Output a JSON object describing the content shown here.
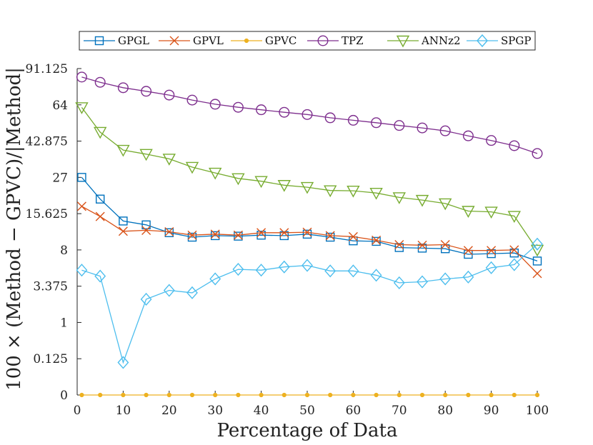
{
  "chart_data": {
    "type": "line",
    "title": "",
    "xlabel": "Percentage of Data",
    "ylabel": "100 × (Method − GPVC)/|Method|",
    "xlim": [
      0,
      100
    ],
    "ylim": [
      0,
      91.125
    ],
    "y_scale": "cube-root",
    "xticks": [
      0,
      10,
      20,
      30,
      40,
      50,
      60,
      70,
      80,
      90,
      100
    ],
    "xtick_labels": [
      "0",
      "10",
      "20",
      "30",
      "40",
      "50",
      "60",
      "70",
      "80",
      "90",
      "100"
    ],
    "yticks": [
      0,
      0.125,
      1,
      3.375,
      8,
      15.625,
      27,
      42.875,
      64,
      91.125
    ],
    "ytick_labels": [
      "0",
      "0.125",
      "1",
      "3.375",
      "8",
      "15.625",
      "27",
      "42.875",
      "64",
      "91.125"
    ],
    "grid": false,
    "legend_position": "top",
    "x": [
      1,
      5,
      10,
      15,
      20,
      25,
      30,
      35,
      40,
      45,
      50,
      55,
      60,
      65,
      70,
      75,
      80,
      85,
      90,
      95,
      100
    ],
    "series": [
      {
        "name": "GPGL",
        "color": "#0072BD",
        "marker": "square",
        "values": [
          27.0,
          19.7,
          13.8,
          12.9,
          11.2,
          10.3,
          10.6,
          10.5,
          10.7,
          10.6,
          10.9,
          10.3,
          9.6,
          9.5,
          8.4,
          8.3,
          8.2,
          7.3,
          7.4,
          7.5,
          6.3
        ]
      },
      {
        "name": "GPVL",
        "color": "#D95319",
        "marker": "x",
        "values": [
          17.6,
          14.9,
          11.5,
          11.7,
          11.4,
          10.7,
          10.9,
          10.7,
          11.2,
          11.2,
          11.3,
          10.6,
          10.4,
          9.7,
          8.9,
          8.8,
          8.9,
          7.9,
          7.9,
          8.0,
          4.7
        ]
      },
      {
        "name": "GPVC",
        "color": "#EDB120",
        "marker": "dot",
        "values": [
          0,
          0,
          0,
          0,
          0,
          0,
          0,
          0,
          0,
          0,
          0,
          0,
          0,
          0,
          0,
          0,
          0,
          0,
          0,
          0,
          0
        ]
      },
      {
        "name": "TPZ",
        "color": "#7E2F8E",
        "marker": "circle",
        "values": [
          84.2,
          80.1,
          76.0,
          73.4,
          70.7,
          67.2,
          64.4,
          62.4,
          60.8,
          59.2,
          57.8,
          55.8,
          54.3,
          52.9,
          51.3,
          49.9,
          48.3,
          45.6,
          43.2,
          40.6,
          36.9
        ]
      },
      {
        "name": "ANNz2",
        "color": "#77AC30",
        "marker": "triangle-down",
        "values": [
          62.3,
          47.6,
          38.5,
          36.6,
          34.5,
          31.0,
          28.7,
          26.6,
          25.6,
          24.2,
          23.5,
          22.4,
          22.3,
          21.6,
          20.2,
          19.4,
          18.4,
          16.3,
          16.1,
          15.0,
          8.0
        ]
      },
      {
        "name": "SPGP",
        "color": "#4DBEEE",
        "marker": "diamond",
        "values": [
          5.1,
          4.4,
          0.09,
          2.3,
          3.0,
          2.8,
          4.1,
          5.2,
          5.1,
          5.5,
          5.7,
          5.0,
          5.0,
          4.5,
          3.7,
          3.8,
          4.1,
          4.3,
          5.4,
          5.8,
          9.0
        ]
      }
    ]
  }
}
